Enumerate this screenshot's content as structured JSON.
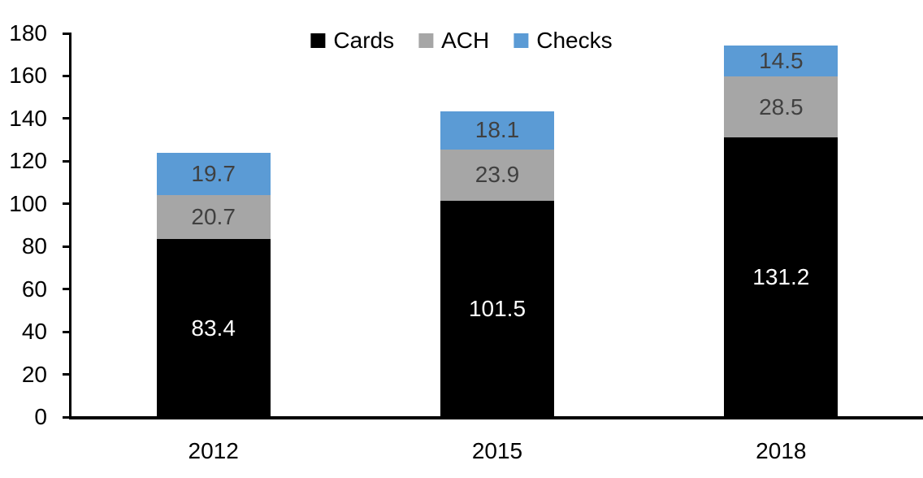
{
  "chart_data": {
    "type": "bar",
    "stacked": true,
    "categories": [
      "2012",
      "2015",
      "2018"
    ],
    "series": [
      {
        "name": "Cards",
        "color": "#000000",
        "label_color": "#FFFFFF",
        "values": [
          83.4,
          101.5,
          131.2
        ]
      },
      {
        "name": "ACH",
        "color": "#A6A6A6",
        "label_color": "#404040",
        "values": [
          20.7,
          23.9,
          28.5
        ]
      },
      {
        "name": "Checks",
        "color": "#5B9BD5",
        "label_color": "#404040",
        "values": [
          19.7,
          18.1,
          14.5
        ]
      }
    ],
    "totals": [
      123.8,
      143.5,
      174.2
    ],
    "title": "",
    "xlabel": "",
    "ylabel": "",
    "ylim": [
      0,
      180
    ],
    "yticks": [
      0,
      20,
      40,
      60,
      80,
      100,
      120,
      140,
      160,
      180
    ],
    "ytick_step": 20,
    "legend_position": "top",
    "grid": false,
    "data_labels": true,
    "data_label_decimals": 1,
    "axis_color": "#000000",
    "background_color": "#FFFFFF"
  }
}
